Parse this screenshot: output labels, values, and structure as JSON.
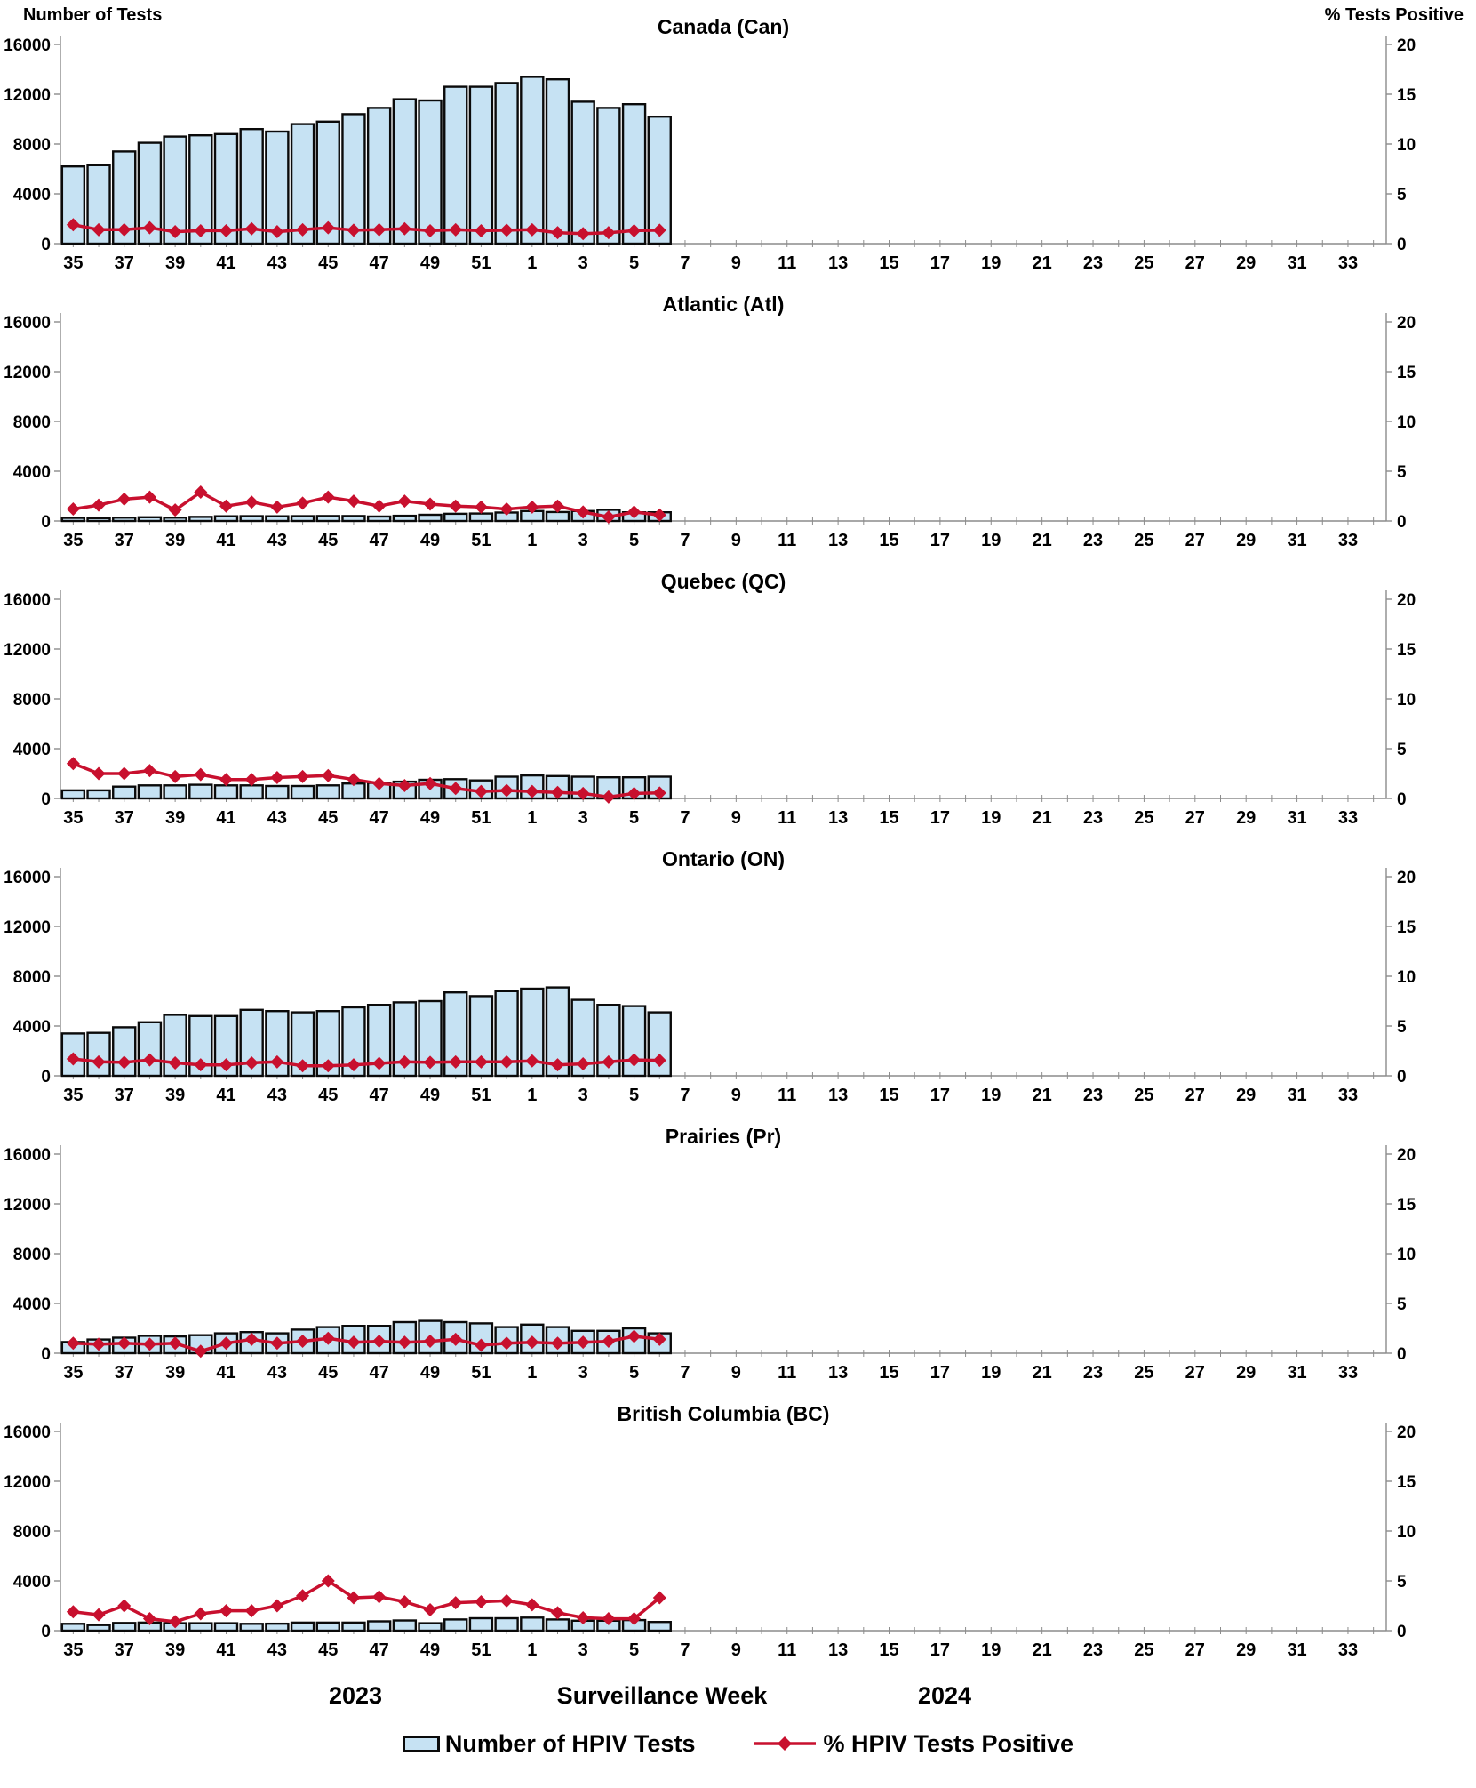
{
  "axes": {
    "left_title": "Number of Tests",
    "right_title": "% Tests Positive",
    "left_ticks": [
      0,
      4000,
      8000,
      12000,
      16000
    ],
    "right_ticks": [
      0,
      5,
      10,
      15,
      20
    ],
    "left_max": 16000,
    "right_max": 20
  },
  "x_axis": {
    "slot_count": 52,
    "tick_labels": [
      "35",
      "37",
      "39",
      "41",
      "43",
      "45",
      "47",
      "49",
      "51",
      "1",
      "3",
      "5",
      "7",
      "9",
      "11",
      "13",
      "15",
      "17",
      "19",
      "21",
      "23",
      "25",
      "27",
      "29",
      "31",
      "33"
    ]
  },
  "footer": {
    "year_left": "2023",
    "axis_title": "Surveillance Week",
    "year_right": "2024"
  },
  "legend": {
    "bar_label": "Number of HPIV Tests",
    "line_label": "% HPIV Tests Positive"
  },
  "colors": {
    "bar_fill": "#C6E2F3",
    "bar_stroke": "#0a0a0a",
    "line": "#C8102E",
    "axis": "#8c8c8c",
    "text": "#000000"
  },
  "chart_data": [
    {
      "type": "bar+line combo",
      "title": "Canada (Can)",
      "categories": [
        "35",
        "36",
        "37",
        "38",
        "39",
        "40",
        "41",
        "42",
        "43",
        "44",
        "45",
        "46",
        "47",
        "48",
        "49",
        "50",
        "51",
        "52",
        "1",
        "2",
        "3",
        "4",
        "5",
        "6"
      ],
      "xlabel": "Surveillance Week",
      "left_ylabel": "Number of Tests",
      "right_ylabel": "% Tests Positive",
      "left_ylim": [
        0,
        16000
      ],
      "right_ylim": [
        0,
        20
      ],
      "grid": false,
      "legend_position": "bottom",
      "series": [
        {
          "name": "Number of HPIV Tests",
          "axis": "left",
          "type": "bar",
          "values": [
            6200,
            6300,
            7400,
            8100,
            8600,
            8700,
            8800,
            9200,
            9000,
            9600,
            9800,
            10400,
            10900,
            11600,
            11500,
            12600,
            12600,
            12900,
            13400,
            13200,
            11400,
            10900,
            11200,
            10200
          ]
        },
        {
          "name": "% HPIV Tests Positive",
          "axis": "right",
          "type": "line",
          "values": [
            1.9,
            1.4,
            1.4,
            1.6,
            1.2,
            1.3,
            1.3,
            1.5,
            1.2,
            1.4,
            1.6,
            1.35,
            1.4,
            1.5,
            1.3,
            1.4,
            1.3,
            1.35,
            1.4,
            1.1,
            1.0,
            1.1,
            1.3,
            1.35
          ]
        }
      ]
    },
    {
      "type": "bar+line combo",
      "title": "Atlantic (Atl)",
      "categories": [
        "35",
        "36",
        "37",
        "38",
        "39",
        "40",
        "41",
        "42",
        "43",
        "44",
        "45",
        "46",
        "47",
        "48",
        "49",
        "50",
        "51",
        "52",
        "1",
        "2",
        "3",
        "4",
        "5",
        "6"
      ],
      "left_ylim": [
        0,
        16000
      ],
      "right_ylim": [
        0,
        20
      ],
      "series": [
        {
          "name": "Number of HPIV Tests",
          "axis": "left",
          "type": "bar",
          "values": [
            250,
            230,
            270,
            300,
            270,
            330,
            380,
            390,
            380,
            390,
            400,
            400,
            360,
            420,
            500,
            580,
            600,
            680,
            800,
            720,
            800,
            900,
            700,
            700
          ]
        },
        {
          "name": "% HPIV Tests Positive",
          "axis": "right",
          "type": "line",
          "values": [
            1.2,
            1.6,
            2.2,
            2.4,
            1.1,
            2.9,
            1.5,
            1.9,
            1.4,
            1.8,
            2.4,
            2.0,
            1.5,
            2.0,
            1.7,
            1.5,
            1.4,
            1.2,
            1.4,
            1.5,
            0.9,
            0.4,
            0.9,
            0.6
          ]
        }
      ]
    },
    {
      "type": "bar+line combo",
      "title": "Quebec (QC)",
      "categories": [
        "35",
        "36",
        "37",
        "38",
        "39",
        "40",
        "41",
        "42",
        "43",
        "44",
        "45",
        "46",
        "47",
        "48",
        "49",
        "50",
        "51",
        "52",
        "1",
        "2",
        "3",
        "4",
        "5",
        "6"
      ],
      "left_ylim": [
        0,
        16000
      ],
      "right_ylim": [
        0,
        20
      ],
      "series": [
        {
          "name": "Number of HPIV Tests",
          "axis": "left",
          "type": "bar",
          "values": [
            650,
            650,
            950,
            1050,
            1050,
            1100,
            1050,
            1050,
            1000,
            1000,
            1050,
            1200,
            1250,
            1350,
            1500,
            1550,
            1450,
            1750,
            1850,
            1800,
            1750,
            1700,
            1700,
            1750
          ]
        },
        {
          "name": "% HPIV Tests Positive",
          "axis": "right",
          "type": "line",
          "values": [
            3.5,
            2.5,
            2.5,
            2.8,
            2.2,
            2.4,
            1.9,
            1.9,
            2.1,
            2.2,
            2.3,
            1.9,
            1.5,
            1.3,
            1.5,
            1.0,
            0.7,
            0.8,
            0.7,
            0.6,
            0.5,
            0.15,
            0.5,
            0.55
          ]
        }
      ]
    },
    {
      "type": "bar+line combo",
      "title": "Ontario (ON)",
      "categories": [
        "35",
        "36",
        "37",
        "38",
        "39",
        "40",
        "41",
        "42",
        "43",
        "44",
        "45",
        "46",
        "47",
        "48",
        "49",
        "50",
        "51",
        "52",
        "1",
        "2",
        "3",
        "4",
        "5",
        "6"
      ],
      "left_ylim": [
        0,
        16000
      ],
      "right_ylim": [
        0,
        20
      ],
      "series": [
        {
          "name": "Number of HPIV Tests",
          "axis": "left",
          "type": "bar",
          "values": [
            3400,
            3450,
            3900,
            4300,
            4900,
            4800,
            4800,
            5300,
            5200,
            5100,
            5200,
            5500,
            5700,
            5900,
            6000,
            6700,
            6400,
            6800,
            7000,
            7100,
            6100,
            5700,
            5600,
            5100
          ]
        },
        {
          "name": "% HPIV Tests Positive",
          "axis": "right",
          "type": "line",
          "values": [
            1.7,
            1.4,
            1.35,
            1.6,
            1.3,
            1.1,
            1.1,
            1.3,
            1.4,
            1.0,
            1.0,
            1.1,
            1.25,
            1.4,
            1.35,
            1.4,
            1.4,
            1.4,
            1.5,
            1.1,
            1.2,
            1.4,
            1.6,
            1.55
          ]
        }
      ]
    },
    {
      "type": "bar+line combo",
      "title": "Prairies (Pr)",
      "categories": [
        "35",
        "36",
        "37",
        "38",
        "39",
        "40",
        "41",
        "42",
        "43",
        "44",
        "45",
        "46",
        "47",
        "48",
        "49",
        "50",
        "51",
        "52",
        "1",
        "2",
        "3",
        "4",
        "5",
        "6"
      ],
      "left_ylim": [
        0,
        16000
      ],
      "right_ylim": [
        0,
        20
      ],
      "series": [
        {
          "name": "Number of HPIV Tests",
          "axis": "left",
          "type": "bar",
          "values": [
            900,
            1100,
            1250,
            1400,
            1350,
            1450,
            1600,
            1700,
            1600,
            1900,
            2100,
            2200,
            2200,
            2500,
            2600,
            2500,
            2400,
            2100,
            2300,
            2100,
            1800,
            1800,
            2000,
            1600
          ]
        },
        {
          "name": "% HPIV Tests Positive",
          "axis": "right",
          "type": "line",
          "values": [
            1.0,
            0.9,
            1.0,
            0.9,
            1.0,
            0.2,
            1.0,
            1.4,
            1.0,
            1.2,
            1.5,
            1.1,
            1.2,
            1.1,
            1.2,
            1.4,
            0.8,
            1.0,
            1.1,
            1.0,
            1.1,
            1.2,
            1.7,
            1.4
          ]
        }
      ]
    },
    {
      "type": "bar+line combo",
      "title": "British Columbia (BC)",
      "categories": [
        "35",
        "36",
        "37",
        "38",
        "39",
        "40",
        "41",
        "42",
        "43",
        "44",
        "45",
        "46",
        "47",
        "48",
        "49",
        "50",
        "51",
        "52",
        "1",
        "2",
        "3",
        "4",
        "5",
        "6"
      ],
      "left_ylim": [
        0,
        16000
      ],
      "right_ylim": [
        0,
        20
      ],
      "series": [
        {
          "name": "Number of HPIV Tests",
          "axis": "left",
          "type": "bar",
          "values": [
            550,
            450,
            620,
            650,
            600,
            600,
            600,
            550,
            560,
            650,
            650,
            650,
            750,
            820,
            600,
            900,
            1000,
            1000,
            1050,
            900,
            800,
            800,
            850,
            700
          ]
        },
        {
          "name": "% HPIV Tests Positive",
          "axis": "right",
          "type": "line",
          "values": [
            1.9,
            1.6,
            2.5,
            1.2,
            0.9,
            1.7,
            2.0,
            2.0,
            2.5,
            3.5,
            5.0,
            3.3,
            3.4,
            2.9,
            2.1,
            2.8,
            2.9,
            3.0,
            2.6,
            1.8,
            1.3,
            1.2,
            1.2,
            3.3
          ]
        }
      ]
    }
  ]
}
